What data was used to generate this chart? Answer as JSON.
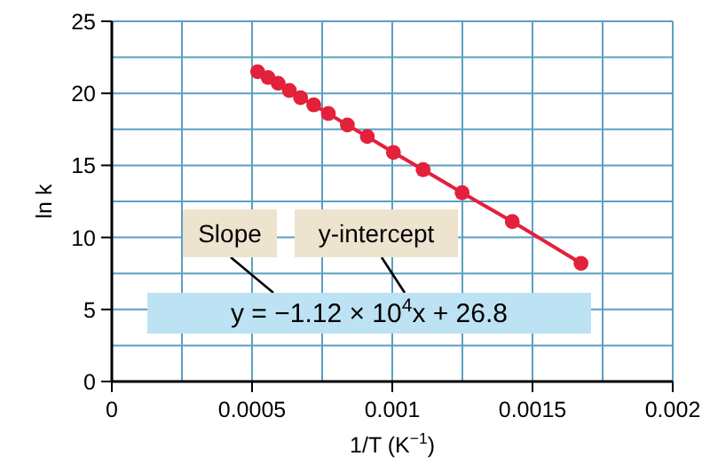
{
  "chart_data": {
    "type": "line",
    "xlabel": "1/T (K$^{−1}$)",
    "ylabel": "ln k",
    "x": [
      0.00052,
      0.000557,
      0.000593,
      0.000633,
      0.000673,
      0.00072,
      0.000772,
      0.00084,
      0.000911,
      0.001004,
      0.00111,
      0.001249,
      0.001428,
      0.001673
    ],
    "series": [
      {
        "color": "#e3213b",
        "values": [
          21.5,
          21.1,
          20.7,
          20.2,
          19.7,
          19.2,
          18.6,
          17.8,
          17.0,
          15.9,
          14.7,
          13.1,
          11.1,
          8.2
        ]
      }
    ],
    "xlim": [
      0,
      0.002
    ],
    "ylim": [
      0,
      25
    ],
    "xticks": [
      0,
      {
        "value": 0.00025,
        "label": null
      },
      0.0005,
      {
        "value": 0.00075,
        "label": null
      },
      0.001,
      {
        "value": 0.00125,
        "label": null
      },
      0.0015,
      {
        "value": 0.00175,
        "label": null
      },
      0.002
    ],
    "yticks": [
      0,
      {
        "value": 2.5,
        "label": null
      },
      5,
      {
        "value": 7.5,
        "label": null
      },
      10,
      {
        "value": 12.5,
        "label": null
      },
      15,
      {
        "value": 17.5,
        "label": null
      },
      20,
      {
        "value": 22.5,
        "label": null
      },
      25
    ],
    "grid": true,
    "marker": "circle",
    "line_style": "solid",
    "annotations": [
      "Slope",
      "y-intercept",
      "y = −1.12 × 10$^{4}$x + 26.8"
    ]
  }
}
